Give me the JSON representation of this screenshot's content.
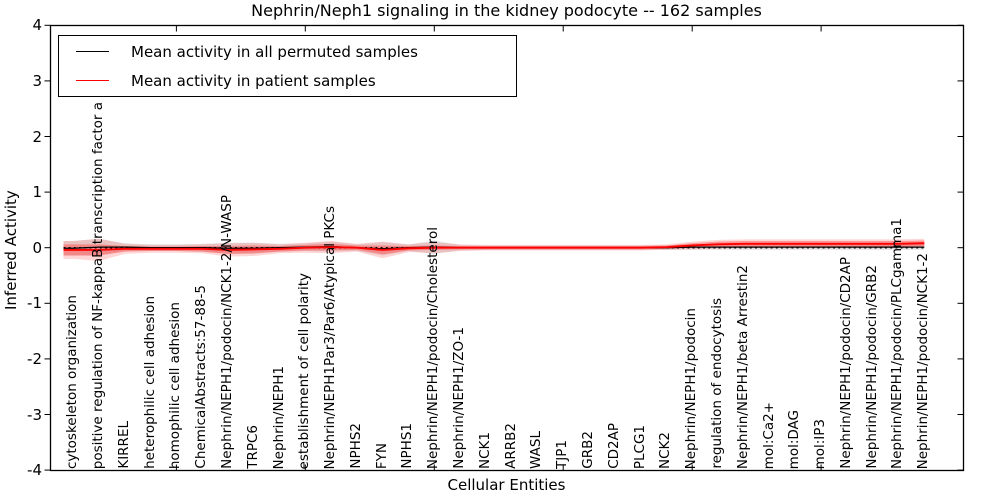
{
  "title": "Nephrin/Neph1 signaling in the kidney podocyte -- 162 samples",
  "axes": {
    "xlabel": "Cellular Entities",
    "ylabel": "Inferred Activity",
    "ytick_labels": [
      "4",
      "3",
      "2",
      "1",
      "0",
      "-1",
      "-2",
      "-3",
      "-4"
    ],
    "ytick_values": [
      4,
      3,
      2,
      1,
      0,
      -1,
      -2,
      -3,
      -4
    ]
  },
  "legend": {
    "items": [
      {
        "label": "Mean activity in all permuted samples",
        "color": "#000000"
      },
      {
        "label": "Mean activity in patient samples",
        "color": "#ff0000"
      }
    ]
  },
  "colors": {
    "patient_line": "#ff0000",
    "permuted_line": "#000000",
    "patient_band": "#ff4444",
    "permuted_band": "#aaaaaa",
    "zero_line": "#000000"
  },
  "chart_data": {
    "type": "line",
    "title": "Nephrin/Neph1 signaling in the kidney podocyte -- 162 samples",
    "xlabel": "Cellular Entities",
    "ylabel": "Inferred Activity",
    "ylim": [
      -4,
      4
    ],
    "grid": false,
    "legend_position": "upper left",
    "zero_reference_line": true,
    "categories": [
      "cytoskeleton organization",
      "positive regulation of NF-kappaB transcription factor a",
      "KIRREL",
      "heterophilic cell adhesion",
      "homophilic cell adhesion",
      "ChemicalAbstracts:57-88-5",
      "Nephrin/NEPH1/podocin/NCK1-2/N-WASP",
      "TRPC6",
      "Nephrin/NEPH1",
      "establishment of cell polarity",
      "Nephrin/NEPH1Par3/Par6/Atypical PKCs",
      "NPHS2",
      "FYN",
      "NPHS1",
      "Nephrin/NEPH1/podocin/Cholesterol",
      "Nephrin/NEPH1/ZO-1",
      "NCK1",
      "ARRB2",
      "WASL",
      "TJP1",
      "GRB2",
      "CD2AP",
      "PLCG1",
      "NCK2",
      "Nephrin/NEPH1/podocin",
      "regulation of endocytosis",
      "Nephrin/NEPH1/beta Arrestin2",
      "mol:Ca2+",
      "mol:DAG",
      "mol:IP3",
      "Nephrin/NEPH1/podocin/CD2AP",
      "Nephrin/NEPH1/podocin/GRB2",
      "Nephrin/NEPH1/podocin/PLCgamma1",
      "Nephrin/NEPH1/podocin/NCK1-2"
    ],
    "series": [
      {
        "name": "Mean activity in all permuted samples",
        "color": "#000000",
        "values": [
          -0.01,
          0.01,
          0.01,
          0.0,
          0.0,
          0.0,
          -0.01,
          -0.01,
          0.0,
          0.01,
          0.02,
          0.0,
          -0.02,
          0.0,
          0.01,
          0.0,
          0.0,
          0.0,
          0.0,
          0.0,
          0.0,
          0.0,
          0.0,
          0.0,
          0.01,
          0.01,
          0.01,
          0.01,
          0.01,
          0.01,
          0.01,
          0.01,
          0.01,
          0.01
        ],
        "band_halfwidth": [
          0.13,
          0.15,
          0.07,
          0.06,
          0.06,
          0.07,
          0.1,
          0.1,
          0.07,
          0.07,
          0.09,
          0.06,
          0.12,
          0.06,
          0.12,
          0.05,
          0.04,
          0.04,
          0.04,
          0.04,
          0.04,
          0.04,
          0.04,
          0.04,
          0.05,
          0.05,
          0.05,
          0.05,
          0.05,
          0.05,
          0.05,
          0.05,
          0.05,
          0.05
        ]
      },
      {
        "name": "Mean activity in patient samples",
        "color": "#ff0000",
        "values": [
          -0.04,
          -0.04,
          -0.02,
          -0.02,
          -0.02,
          -0.02,
          -0.04,
          -0.03,
          -0.02,
          0.0,
          0.01,
          0.0,
          -0.04,
          -0.01,
          0.0,
          0.0,
          0.0,
          0.0,
          0.0,
          0.0,
          0.0,
          0.0,
          0.0,
          0.01,
          0.04,
          0.06,
          0.07,
          0.07,
          0.07,
          0.07,
          0.07,
          0.07,
          0.07,
          0.08
        ],
        "band_inner_halfwidth": [
          0.1,
          0.1,
          0.05,
          0.04,
          0.04,
          0.05,
          0.07,
          0.07,
          0.05,
          0.05,
          0.06,
          0.04,
          0.08,
          0.04,
          0.04,
          0.03,
          0.03,
          0.03,
          0.03,
          0.03,
          0.03,
          0.03,
          0.03,
          0.03,
          0.04,
          0.05,
          0.05,
          0.05,
          0.05,
          0.05,
          0.05,
          0.05,
          0.05,
          0.05
        ],
        "band_outer_halfwidth": [
          0.16,
          0.2,
          0.09,
          0.07,
          0.07,
          0.08,
          0.12,
          0.12,
          0.08,
          0.09,
          0.11,
          0.07,
          0.15,
          0.07,
          0.1,
          0.06,
          0.05,
          0.05,
          0.05,
          0.05,
          0.05,
          0.05,
          0.05,
          0.05,
          0.07,
          0.08,
          0.08,
          0.08,
          0.08,
          0.08,
          0.08,
          0.08,
          0.08,
          0.08
        ]
      }
    ]
  }
}
